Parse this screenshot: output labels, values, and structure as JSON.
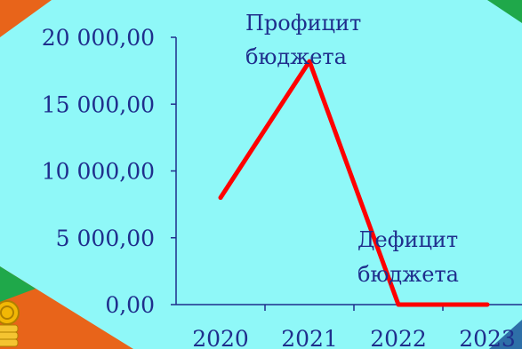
{
  "colors": {
    "background": "#8ff8f8",
    "line": "#ff0000",
    "text": "#1f2e8c",
    "axis": "#1f2e8c",
    "corner_orange": "#e8641a",
    "corner_green": "#1fa84a",
    "corner_blue": "#2e6fa8"
  },
  "decorations": {
    "corner_icon": "gold-coin-stack-icon"
  },
  "chart_data": {
    "type": "line",
    "title": "",
    "xlabel": "",
    "ylabel": "",
    "categories": [
      "2020",
      "2021",
      "2022",
      "2023"
    ],
    "series": [
      {
        "values": [
          8000,
          18200,
          0,
          0
        ]
      }
    ],
    "ylim": [
      0,
      20000
    ],
    "yticks": [
      0,
      5000,
      10000,
      15000,
      20000
    ],
    "ytick_labels": [
      "0,00",
      "5 000,00",
      "10 000,00",
      "15 000,00",
      "20 000,00"
    ],
    "grid": false,
    "legend": "none",
    "annotations": [
      {
        "lines": [
          "Профицит",
          "бюджета"
        ]
      },
      {
        "lines": [
          "Дефицит",
          "бюджета"
        ]
      }
    ]
  }
}
